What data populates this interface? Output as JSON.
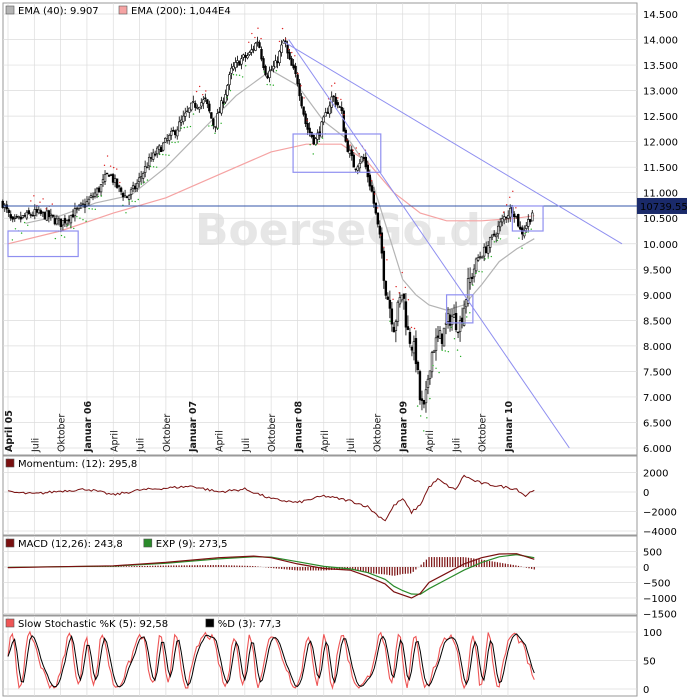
{
  "watermark": "BoerseGo.de",
  "colors": {
    "background": "#ffffff",
    "panel_bg": "#ffffff",
    "grid": "#dcdcdc",
    "border": "#9a9a9a",
    "candle_up": "#ffffff",
    "candle_down": "#000000",
    "ema40": "#b4b4b4",
    "ema200": "#f5a3a3",
    "trendline": "#8f8ff0",
    "box": "#8f8ff0",
    "hline": "#3355aa",
    "sar_up": "#22aa22",
    "sar_down": "#dd2222",
    "momentum": "#7a1010",
    "macd": "#7a1010",
    "exp": "#2a8a2a",
    "hist": "#7a1010",
    "stoch_k": "#ee5555",
    "stoch_d": "#000000",
    "price_tag_bg": "#1a2a6a",
    "price_tag_text": "#ffffff"
  },
  "chart_data": [
    {
      "type": "candlestick",
      "panel": "price",
      "legend": [
        {
          "label": "EMA (40): 9.907",
          "color": "#b4b4b4"
        },
        {
          "label": "EMA (200): 1,044E4",
          "color": "#f5a3a3"
        }
      ],
      "price_tag": "10739.55",
      "ylim": [
        6000,
        14500
      ],
      "yticks": [
        "14.500",
        "14.000",
        "13.500",
        "13.000",
        "12.500",
        "12.000",
        "11.500",
        "11.000",
        "10.500",
        "10.000",
        "9.500",
        "9.000",
        "8.500",
        "8.000",
        "7.500",
        "7.000",
        "6.500",
        "6.000"
      ],
      "ytick_values": [
        14500,
        14000,
        13500,
        13000,
        12500,
        12000,
        11500,
        11000,
        10500,
        10000,
        9500,
        9000,
        8500,
        8000,
        7500,
        7000,
        6500,
        6000
      ],
      "x_range_months": [
        0,
        70
      ],
      "xticks": [
        {
          "label": "April 05",
          "m": 0,
          "bold": true
        },
        {
          "label": "Juli",
          "m": 3,
          "bold": false
        },
        {
          "label": "Oktober",
          "m": 6,
          "bold": false
        },
        {
          "label": "Januar 06",
          "m": 9,
          "bold": true
        },
        {
          "label": "April",
          "m": 12,
          "bold": false
        },
        {
          "label": "Juli",
          "m": 15,
          "bold": false
        },
        {
          "label": "Oktober",
          "m": 18,
          "bold": false
        },
        {
          "label": "Januar 07",
          "m": 21,
          "bold": true
        },
        {
          "label": "April",
          "m": 24,
          "bold": false
        },
        {
          "label": "Juli",
          "m": 27,
          "bold": false
        },
        {
          "label": "Oktober",
          "m": 30,
          "bold": false
        },
        {
          "label": "Januar 08",
          "m": 33,
          "bold": true
        },
        {
          "label": "April",
          "m": 36,
          "bold": false
        },
        {
          "label": "Juli",
          "m": 39,
          "bold": false
        },
        {
          "label": "Oktober",
          "m": 42,
          "bold": false
        },
        {
          "label": "Januar 09",
          "m": 45,
          "bold": true
        },
        {
          "label": "April",
          "m": 48,
          "bold": false
        },
        {
          "label": "Juli",
          "m": 51,
          "bold": false
        },
        {
          "label": "Oktober",
          "m": 54,
          "bold": false
        },
        {
          "label": "Januar 10",
          "m": 57,
          "bold": true
        }
      ],
      "close_path": [
        [
          -0.6,
          10800
        ],
        [
          0.5,
          10400
        ],
        [
          1.5,
          10500
        ],
        [
          3,
          10600
        ],
        [
          4.5,
          10550
        ],
        [
          6,
          10400
        ],
        [
          7.5,
          10600
        ],
        [
          9,
          10800
        ],
        [
          10.5,
          11100
        ],
        [
          11.5,
          11400
        ],
        [
          12.5,
          11100
        ],
        [
          13.5,
          10900
        ],
        [
          14.5,
          11100
        ],
        [
          16,
          11600
        ],
        [
          17.5,
          11900
        ],
        [
          19,
          12200
        ],
        [
          21,
          12700
        ],
        [
          22.5,
          12800
        ],
        [
          23.5,
          12300
        ],
        [
          24.5,
          12800
        ],
        [
          25.5,
          13400
        ],
        [
          26.5,
          13600
        ],
        [
          27.5,
          13700
        ],
        [
          28.5,
          14000
        ],
        [
          29,
          13600
        ],
        [
          29.5,
          13300
        ],
        [
          30.5,
          13500
        ],
        [
          31.5,
          14000
        ],
        [
          32,
          13600
        ],
        [
          33,
          13200
        ],
        [
          34,
          12300
        ],
        [
          35,
          12000
        ],
        [
          36,
          12400
        ],
        [
          37,
          12900
        ],
        [
          38,
          12600
        ],
        [
          38.5,
          12000
        ],
        [
          39.5,
          11500
        ],
        [
          40.5,
          11700
        ],
        [
          41.5,
          11000
        ],
        [
          42.5,
          10000
        ],
        [
          43,
          9200
        ],
        [
          44,
          8400
        ],
        [
          45,
          9100
        ],
        [
          45.5,
          8300
        ],
        [
          46.5,
          7800
        ],
        [
          47,
          6900
        ],
        [
          47.5,
          6700
        ],
        [
          48,
          7600
        ],
        [
          48.5,
          8000
        ],
        [
          49.5,
          8200
        ],
        [
          50.5,
          8600
        ],
        [
          51.5,
          8400
        ],
        [
          52.5,
          9200
        ],
        [
          53.5,
          9700
        ],
        [
          54.5,
          9900
        ],
        [
          55.5,
          10200
        ],
        [
          56.5,
          10500
        ],
        [
          57.5,
          10700
        ],
        [
          58,
          10500
        ],
        [
          58.5,
          10200
        ],
        [
          59.5,
          10500
        ],
        [
          60,
          10740
        ]
      ],
      "ema40": [
        [
          2,
          10400
        ],
        [
          6,
          10550
        ],
        [
          10,
          10800
        ],
        [
          14,
          10950
        ],
        [
          18,
          11500
        ],
        [
          22,
          12200
        ],
        [
          26,
          12900
        ],
        [
          30,
          13400
        ],
        [
          33,
          13100
        ],
        [
          36,
          12400
        ],
        [
          39,
          12000
        ],
        [
          41,
          11500
        ],
        [
          43,
          10400
        ],
        [
          45,
          9300
        ],
        [
          46.5,
          9000
        ],
        [
          48,
          8800
        ],
        [
          50,
          8700
        ],
        [
          52,
          8800
        ],
        [
          54,
          9200
        ],
        [
          56,
          9650
        ],
        [
          58,
          9900
        ],
        [
          60,
          10100
        ]
      ],
      "ema200": [
        [
          0,
          10000
        ],
        [
          6,
          10250
        ],
        [
          12,
          10600
        ],
        [
          18,
          10900
        ],
        [
          24,
          11350
        ],
        [
          30,
          11800
        ],
        [
          34,
          11950
        ],
        [
          38,
          11950
        ],
        [
          41,
          11600
        ],
        [
          44,
          11000
        ],
        [
          47,
          10600
        ],
        [
          50,
          10450
        ],
        [
          54,
          10450
        ],
        [
          58,
          10500
        ],
        [
          60,
          10550
        ]
      ],
      "hline": 10740,
      "trendlines": [
        [
          [
            32,
            14000
          ],
          [
            64,
            6000
          ]
        ],
        [
          [
            31.5,
            13950
          ],
          [
            70,
            10000
          ]
        ]
      ],
      "boxes": [
        [
          0,
          10250,
          8,
          9750
        ],
        [
          32.5,
          12150,
          42.5,
          11400
        ],
        [
          50,
          9000,
          53,
          8450
        ],
        [
          57.5,
          10740,
          61,
          10250
        ]
      ]
    },
    {
      "type": "line",
      "panel": "momentum",
      "legend": [
        {
          "label": "Momentum: (12): 295,8",
          "color": "#7a1010"
        }
      ],
      "ylim": [
        -4000,
        2500
      ],
      "yticks": [
        "2000",
        "0",
        "−2000",
        "−4000"
      ],
      "ytick_values": [
        2000,
        0,
        -2000,
        -4000
      ],
      "series": [
        {
          "values": [
            [
              0,
              0
            ],
            [
              3,
              -200
            ],
            [
              6,
              100
            ],
            [
              9,
              300
            ],
            [
              12,
              -300
            ],
            [
              15,
              200
            ],
            [
              18,
              400
            ],
            [
              21,
              600
            ],
            [
              24,
              0
            ],
            [
              27,
              300
            ],
            [
              30,
              -700
            ],
            [
              33,
              -1100
            ],
            [
              36,
              -400
            ],
            [
              39,
              -900
            ],
            [
              41,
              -1500
            ],
            [
              42,
              -2300
            ],
            [
              43,
              -2900
            ],
            [
              44,
              -1400
            ],
            [
              45,
              -700
            ],
            [
              46,
              -2100
            ],
            [
              47,
              -1300
            ],
            [
              48,
              500
            ],
            [
              49,
              1300
            ],
            [
              50,
              700
            ],
            [
              51,
              200
            ],
            [
              52,
              1700
            ],
            [
              53,
              1200
            ],
            [
              54,
              900
            ],
            [
              56,
              600
            ],
            [
              58,
              300
            ],
            [
              59,
              -400
            ],
            [
              60,
              300
            ]
          ]
        }
      ]
    },
    {
      "type": "line",
      "panel": "macd",
      "legend": [
        {
          "label": "MACD (12,26): 243,8",
          "color": "#7a1010"
        },
        {
          "label": "EXP (9): 273,5",
          "color": "#2a8a2a"
        }
      ],
      "ylim": [
        -1500,
        800
      ],
      "yticks": [
        "500",
        "0",
        "−500",
        "−1000",
        "−1500"
      ],
      "ytick_values": [
        500,
        0,
        -500,
        -1000,
        -1500
      ],
      "series": [
        {
          "name": "MACD (12,26)",
          "values": [
            [
              0,
              -20
            ],
            [
              6,
              10
            ],
            [
              12,
              40
            ],
            [
              18,
              150
            ],
            [
              24,
              300
            ],
            [
              28,
              350
            ],
            [
              30,
              300
            ],
            [
              33,
              100
            ],
            [
              36,
              -50
            ],
            [
              39,
              -100
            ],
            [
              41,
              -300
            ],
            [
              43,
              -550
            ],
            [
              44,
              -800
            ],
            [
              45,
              -900
            ],
            [
              46,
              -1000
            ],
            [
              47,
              -850
            ],
            [
              48,
              -500
            ],
            [
              50,
              -200
            ],
            [
              52,
              100
            ],
            [
              54,
              300
            ],
            [
              56,
              420
            ],
            [
              58,
              430
            ],
            [
              60,
              250
            ]
          ]
        },
        {
          "name": "EXP (9)",
          "values": [
            [
              0,
              -10
            ],
            [
              6,
              10
            ],
            [
              12,
              30
            ],
            [
              18,
              120
            ],
            [
              24,
              260
            ],
            [
              28,
              330
            ],
            [
              30,
              320
            ],
            [
              33,
              170
            ],
            [
              36,
              20
            ],
            [
              39,
              -60
            ],
            [
              41,
              -180
            ],
            [
              43,
              -400
            ],
            [
              44,
              -620
            ],
            [
              45,
              -760
            ],
            [
              46,
              -870
            ],
            [
              47,
              -880
            ],
            [
              48,
              -700
            ],
            [
              50,
              -400
            ],
            [
              52,
              -100
            ],
            [
              54,
              150
            ],
            [
              56,
              330
            ],
            [
              58,
              400
            ],
            [
              60,
              300
            ]
          ]
        }
      ]
    },
    {
      "type": "line",
      "panel": "stochastic",
      "legend": [
        {
          "label": "Slow Stochastic %K (5): 92,58",
          "color": "#ee5555"
        },
        {
          "label": "%D (3): 77,3",
          "color": "#000000"
        }
      ],
      "ylim": [
        0,
        110
      ],
      "yticks": [
        "100",
        "50",
        "0"
      ],
      "ytick_values": [
        100,
        50,
        0
      ],
      "series": [
        {
          "name": "%K (5)"
        },
        {
          "name": "%D (3)"
        }
      ]
    }
  ]
}
